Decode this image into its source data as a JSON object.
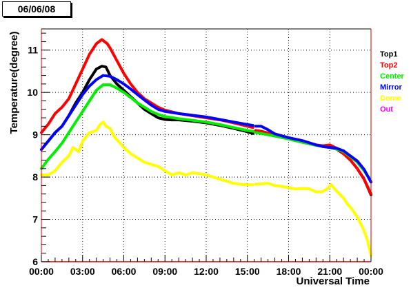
{
  "header": {
    "date": "06/06/08"
  },
  "chart_data": {
    "type": "line",
    "title": "",
    "xlabel": "Universal Time",
    "ylabel": "Temperature(degree)",
    "xlim": [
      0,
      24
    ],
    "ylim": [
      6,
      11.5
    ],
    "grid": true,
    "legend_placement": "right",
    "x_ticks": [
      {
        "value": 0,
        "label": "00:00"
      },
      {
        "value": 3,
        "label": "03:00"
      },
      {
        "value": 6,
        "label": "06:00"
      },
      {
        "value": 9,
        "label": "09:00"
      },
      {
        "value": 12,
        "label": "12:00"
      },
      {
        "value": 15,
        "label": "15:00"
      },
      {
        "value": 18,
        "label": "18:00"
      },
      {
        "value": 21,
        "label": "21:00"
      },
      {
        "value": 24,
        "label": "00:00"
      }
    ],
    "y_ticks": [
      {
        "value": 6,
        "label": "6"
      },
      {
        "value": 7,
        "label": "7"
      },
      {
        "value": 8,
        "label": "8"
      },
      {
        "value": 9,
        "label": "9"
      },
      {
        "value": 10,
        "label": "10"
      },
      {
        "value": 11,
        "label": "11"
      }
    ],
    "series": [
      {
        "name": "Top1",
        "color": "#000000",
        "points": [
          [
            0.0,
            8.65
          ],
          [
            0.5,
            8.85
          ],
          [
            1.0,
            9.05
          ],
          [
            1.5,
            9.2
          ],
          [
            2.0,
            9.45
          ],
          [
            2.5,
            9.75
          ],
          [
            3.0,
            10.0
          ],
          [
            3.5,
            10.3
          ],
          [
            4.0,
            10.55
          ],
          [
            4.4,
            10.62
          ],
          [
            4.7,
            10.6
          ],
          [
            5.0,
            10.4
          ],
          [
            5.5,
            10.2
          ],
          [
            6.0,
            10.05
          ],
          [
            6.5,
            9.9
          ],
          [
            7.0,
            9.75
          ],
          [
            7.5,
            9.6
          ],
          [
            8.0,
            9.5
          ],
          [
            8.5,
            9.4
          ],
          [
            9.0,
            9.36
          ],
          [
            9.5,
            9.35
          ],
          [
            10.0,
            9.35
          ],
          [
            11.0,
            9.32
          ],
          [
            12.0,
            9.28
          ],
          [
            13.0,
            9.22
          ],
          [
            14.0,
            9.15
          ],
          [
            15.0,
            9.07
          ],
          [
            15.4,
            9.03
          ],
          null,
          [
            15.6,
            9.1
          ],
          [
            16.0,
            9.08
          ],
          [
            17.0,
            9.0
          ],
          [
            18.0,
            8.93
          ],
          [
            19.0,
            8.85
          ],
          [
            20.0,
            8.76
          ],
          [
            20.5,
            8.72
          ],
          [
            21.0,
            8.7
          ],
          [
            21.5,
            8.66
          ],
          [
            22.0,
            8.55
          ],
          [
            22.5,
            8.4
          ],
          [
            23.0,
            8.2
          ],
          [
            23.5,
            7.95
          ],
          [
            24.0,
            7.58
          ]
        ]
      },
      {
        "name": "Top2",
        "color": "#ff0000",
        "points": [
          [
            0.0,
            9.05
          ],
          [
            0.5,
            9.25
          ],
          [
            1.0,
            9.5
          ],
          [
            1.5,
            9.65
          ],
          [
            2.0,
            9.85
          ],
          [
            2.5,
            10.2
          ],
          [
            3.0,
            10.55
          ],
          [
            3.5,
            10.9
          ],
          [
            4.0,
            11.15
          ],
          [
            4.4,
            11.25
          ],
          [
            4.8,
            11.15
          ],
          [
            5.0,
            11.05
          ],
          [
            5.5,
            10.75
          ],
          [
            6.0,
            10.45
          ],
          [
            6.5,
            10.2
          ],
          [
            7.0,
            10.0
          ],
          [
            7.5,
            9.85
          ],
          [
            8.0,
            9.75
          ],
          [
            8.5,
            9.65
          ],
          [
            9.0,
            9.58
          ],
          [
            10.0,
            9.5
          ],
          [
            11.0,
            9.45
          ],
          [
            12.0,
            9.4
          ],
          [
            13.0,
            9.35
          ],
          [
            14.0,
            9.28
          ],
          [
            15.0,
            9.2
          ],
          [
            15.4,
            9.17
          ],
          null,
          [
            15.6,
            9.1
          ],
          [
            16.0,
            9.08
          ],
          [
            17.0,
            9.0
          ],
          [
            18.0,
            8.92
          ],
          [
            19.0,
            8.85
          ],
          [
            20.0,
            8.76
          ],
          [
            20.5,
            8.74
          ],
          [
            21.0,
            8.76
          ],
          [
            21.5,
            8.68
          ],
          [
            22.0,
            8.55
          ],
          [
            22.5,
            8.4
          ],
          [
            23.0,
            8.2
          ],
          [
            23.5,
            7.95
          ],
          [
            24.0,
            7.6
          ]
        ]
      },
      {
        "name": "Center",
        "color": "#00ee00",
        "points": [
          [
            0.0,
            8.2
          ],
          [
            0.5,
            8.42
          ],
          [
            1.0,
            8.6
          ],
          [
            1.5,
            8.8
          ],
          [
            2.0,
            9.05
          ],
          [
            2.5,
            9.3
          ],
          [
            3.0,
            9.55
          ],
          [
            3.5,
            9.8
          ],
          [
            4.0,
            10.05
          ],
          [
            4.5,
            10.18
          ],
          [
            5.0,
            10.18
          ],
          [
            5.5,
            10.1
          ],
          [
            6.0,
            10.0
          ],
          [
            6.5,
            9.88
          ],
          [
            7.0,
            9.75
          ],
          [
            7.5,
            9.65
          ],
          [
            8.0,
            9.55
          ],
          [
            8.5,
            9.48
          ],
          [
            9.0,
            9.43
          ],
          [
            10.0,
            9.38
          ],
          [
            11.0,
            9.34
          ],
          [
            12.0,
            9.3
          ],
          [
            13.0,
            9.24
          ],
          [
            14.0,
            9.17
          ],
          [
            15.0,
            9.1
          ],
          [
            15.4,
            9.08
          ],
          null,
          [
            15.6,
            9.05
          ],
          [
            16.0,
            9.03
          ],
          [
            17.0,
            8.97
          ],
          [
            18.0,
            8.9
          ],
          [
            19.0,
            8.82
          ],
          [
            20.0,
            8.75
          ],
          [
            20.5,
            8.72
          ],
          [
            21.0,
            8.7
          ],
          [
            21.5,
            8.66
          ],
          [
            22.0,
            8.6
          ],
          [
            22.5,
            8.48
          ],
          [
            23.0,
            8.35
          ],
          [
            23.5,
            8.15
          ],
          [
            24.0,
            7.9
          ]
        ]
      },
      {
        "name": "Mirror",
        "color": "#0000ff",
        "points": [
          [
            0.0,
            8.65
          ],
          [
            0.5,
            8.85
          ],
          [
            1.0,
            9.05
          ],
          [
            1.5,
            9.2
          ],
          [
            2.0,
            9.45
          ],
          [
            2.5,
            9.7
          ],
          [
            3.0,
            9.95
          ],
          [
            3.5,
            10.15
          ],
          [
            4.0,
            10.3
          ],
          [
            4.5,
            10.4
          ],
          [
            5.0,
            10.38
          ],
          [
            5.5,
            10.3
          ],
          [
            6.0,
            10.2
          ],
          [
            6.5,
            10.08
          ],
          [
            7.0,
            9.95
          ],
          [
            7.5,
            9.82
          ],
          [
            8.0,
            9.7
          ],
          [
            8.5,
            9.6
          ],
          [
            9.0,
            9.55
          ],
          [
            10.0,
            9.5
          ],
          [
            11.0,
            9.46
          ],
          [
            12.0,
            9.42
          ],
          [
            13.0,
            9.36
          ],
          [
            14.0,
            9.3
          ],
          [
            15.0,
            9.24
          ],
          [
            15.4,
            9.22
          ],
          null,
          [
            15.6,
            9.2
          ],
          [
            16.0,
            9.2
          ],
          [
            16.5,
            9.12
          ],
          [
            17.0,
            9.02
          ],
          [
            18.0,
            8.93
          ],
          [
            19.0,
            8.86
          ],
          [
            20.0,
            8.76
          ],
          [
            20.5,
            8.72
          ],
          [
            21.0,
            8.7
          ],
          [
            21.5,
            8.68
          ],
          [
            22.0,
            8.62
          ],
          [
            22.5,
            8.5
          ],
          [
            23.0,
            8.38
          ],
          [
            23.5,
            8.18
          ],
          [
            24.0,
            7.88
          ]
        ]
      },
      {
        "name": "Dome",
        "color": "#ffff00",
        "points": [
          [
            0.0,
            8.05
          ],
          [
            0.5,
            8.05
          ],
          [
            1.0,
            8.15
          ],
          [
            1.5,
            8.35
          ],
          [
            2.0,
            8.5
          ],
          [
            2.3,
            8.7
          ],
          [
            2.7,
            8.6
          ],
          [
            3.0,
            8.85
          ],
          [
            3.5,
            9.05
          ],
          [
            4.0,
            9.1
          ],
          [
            4.3,
            9.25
          ],
          [
            4.5,
            9.3
          ],
          [
            4.7,
            9.2
          ],
          [
            5.0,
            9.15
          ],
          [
            5.3,
            8.95
          ],
          [
            5.6,
            8.85
          ],
          [
            6.0,
            8.7
          ],
          [
            6.5,
            8.55
          ],
          [
            7.0,
            8.45
          ],
          [
            7.5,
            8.35
          ],
          [
            8.0,
            8.3
          ],
          [
            8.5,
            8.25
          ],
          [
            9.0,
            8.15
          ],
          [
            9.5,
            8.05
          ],
          [
            10.0,
            8.1
          ],
          [
            10.5,
            8.05
          ],
          [
            11.0,
            8.1
          ],
          [
            11.5,
            8.08
          ],
          [
            12.0,
            8.05
          ],
          [
            12.5,
            8.0
          ],
          [
            13.0,
            7.95
          ],
          [
            13.5,
            7.9
          ],
          [
            14.0,
            7.85
          ],
          [
            14.5,
            7.83
          ],
          [
            15.0,
            7.82
          ],
          [
            15.4,
            7.82
          ],
          null,
          [
            15.6,
            7.83
          ],
          [
            16.0,
            7.84
          ],
          [
            16.5,
            7.85
          ],
          [
            17.0,
            7.8
          ],
          [
            17.5,
            7.78
          ],
          [
            18.0,
            7.75
          ],
          [
            18.5,
            7.72
          ],
          [
            19.0,
            7.73
          ],
          [
            19.5,
            7.72
          ],
          [
            20.0,
            7.65
          ],
          [
            20.4,
            7.65
          ],
          [
            20.8,
            7.72
          ],
          [
            21.1,
            7.82
          ],
          [
            21.4,
            7.7
          ],
          [
            21.7,
            7.6
          ],
          [
            22.0,
            7.5
          ],
          [
            22.3,
            7.35
          ],
          [
            22.6,
            7.25
          ],
          [
            23.0,
            7.05
          ],
          [
            23.4,
            6.8
          ],
          [
            23.7,
            6.55
          ],
          [
            24.0,
            6.15
          ]
        ]
      },
      {
        "name": "Out",
        "color": "#ff00ff",
        "points": []
      }
    ]
  }
}
